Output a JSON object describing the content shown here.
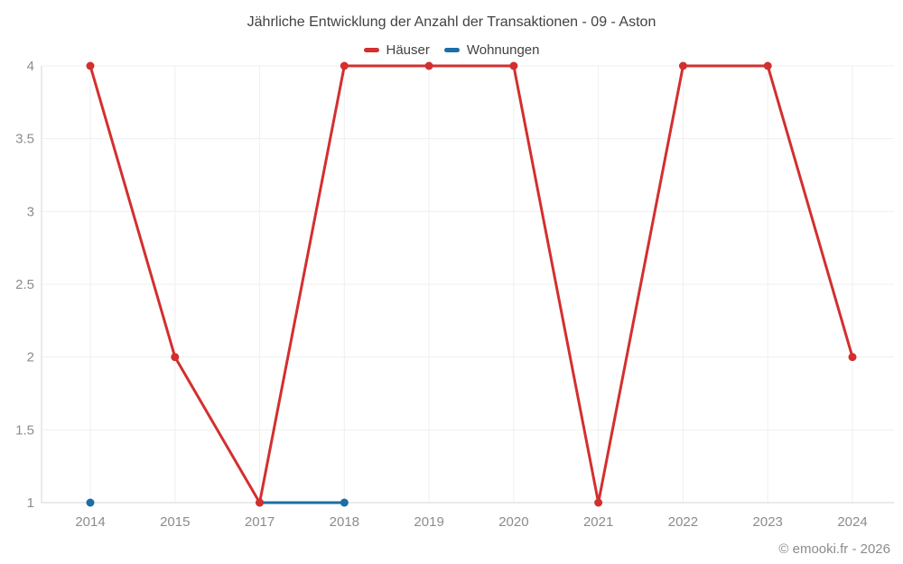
{
  "chart_data": {
    "type": "line",
    "title": "Jährliche Entwicklung der Anzahl der Transaktionen - 09 - Aston",
    "categories": [
      "2014",
      "2015",
      "2017",
      "2018",
      "2019",
      "2020",
      "2021",
      "2022",
      "2023",
      "2024"
    ],
    "series": [
      {
        "name": "Häuser",
        "color": "#d32f2f",
        "values": [
          4,
          2,
          1,
          4,
          4,
          4,
          1,
          4,
          4,
          2
        ]
      },
      {
        "name": "Wohnungen",
        "color": "#1c6ea4",
        "values": [
          1,
          null,
          1,
          1,
          null,
          null,
          null,
          null,
          null,
          null
        ]
      }
    ],
    "ylim": [
      1,
      4
    ],
    "yticks": [
      1,
      1.5,
      2,
      2.5,
      3,
      3.5,
      4
    ],
    "grid": true,
    "legend_position": "top",
    "xlabel": "",
    "ylabel": ""
  },
  "colors": {
    "grid_line": "#efefef",
    "axis_line": "#d6d6d6",
    "tick_text": "#8c8c8c",
    "title_text": "#424242"
  },
  "footer": {
    "credit": "© emooki.fr - 2026"
  }
}
